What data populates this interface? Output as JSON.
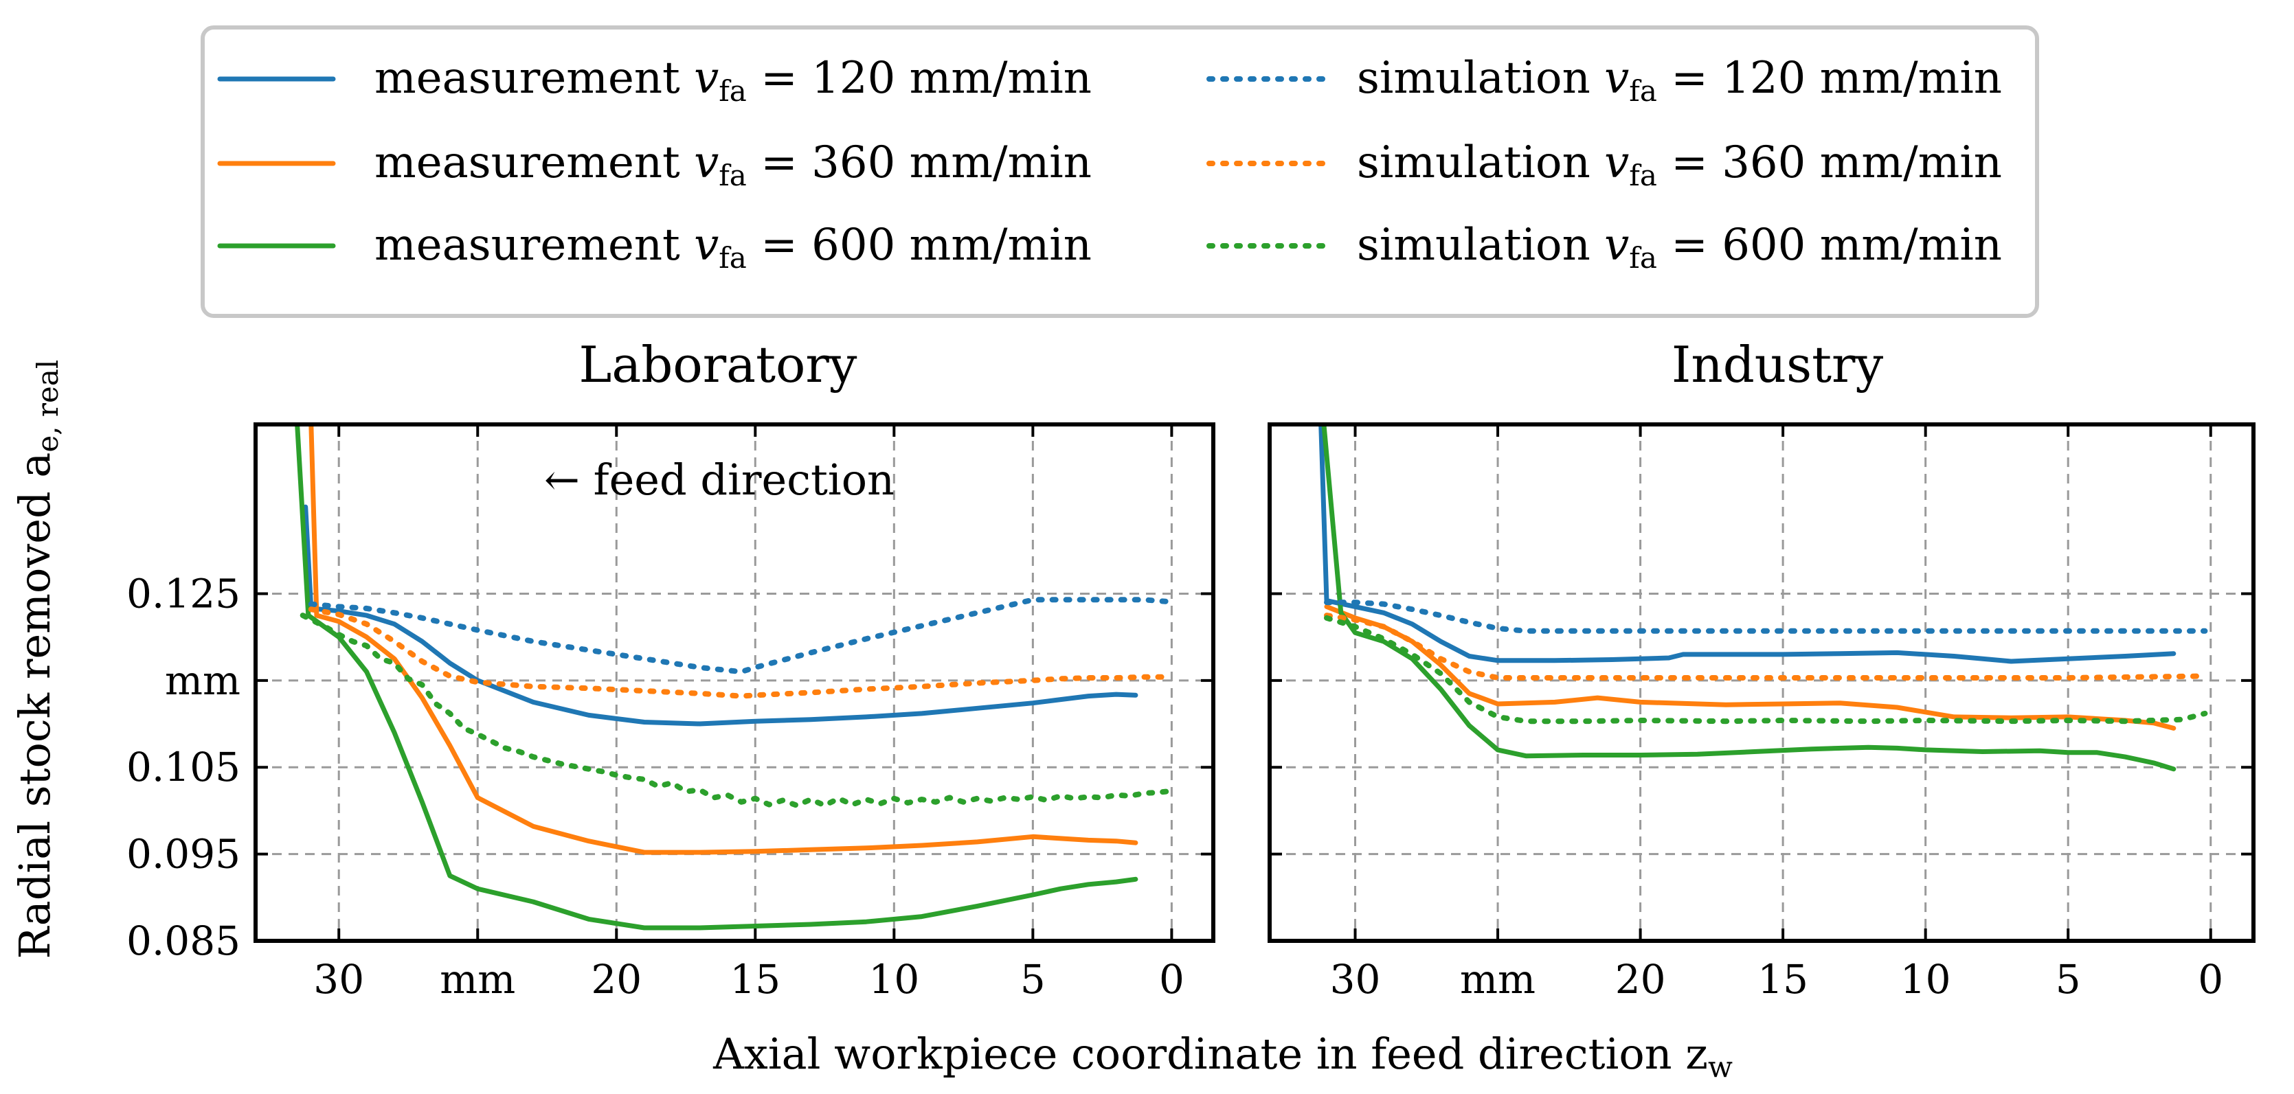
{
  "chart_data": {
    "type": "line",
    "legend": {
      "placement": "top",
      "entries": [
        {
          "kind": "measurement",
          "text": "measurement ",
          "sub": "fa",
          "rate": " = 120 mm/min",
          "color": "#1f77b4",
          "style": "solid"
        },
        {
          "kind": "measurement",
          "text": "measurement ",
          "sub": "fa",
          "rate": " = 360 mm/min",
          "color": "#ff7f0e",
          "style": "solid"
        },
        {
          "kind": "measurement",
          "text": "measurement ",
          "sub": "fa",
          "rate": " = 600 mm/min",
          "color": "#2ca02c",
          "style": "solid"
        },
        {
          "kind": "simulation",
          "text": "simulation ",
          "sub": "fa",
          "rate": " = 120 mm/min",
          "color": "#1f77b4",
          "style": "dotted"
        },
        {
          "kind": "simulation",
          "text": "simulation ",
          "sub": "fa",
          "rate": " = 360 mm/min",
          "color": "#ff7f0e",
          "style": "dotted"
        },
        {
          "kind": "simulation",
          "text": "simulation ",
          "sub": "fa",
          "rate": " = 600 mm/min",
          "color": "#2ca02c",
          "style": "dotted"
        }
      ]
    },
    "ylabel": "Radial stock removed a",
    "ylabel_sub": "e, real",
    "xlabel": "Axial workpiece coordinate in feed direction z",
    "xlabel_sub": "w",
    "xlim": [
      33,
      -1.5
    ],
    "ylim": [
      0.085,
      0.1445
    ],
    "xticks": [
      {
        "value": 30,
        "label": "30"
      },
      {
        "value": 25,
        "label": "mm"
      },
      {
        "value": 20,
        "label": "20"
      },
      {
        "value": 15,
        "label": "15"
      },
      {
        "value": 10,
        "label": "10"
      },
      {
        "value": 5,
        "label": "5"
      },
      {
        "value": 0,
        "label": "0"
      }
    ],
    "yticks": [
      {
        "value": 0.125,
        "label": "0.125"
      },
      {
        "value": 0.115,
        "label": "mm"
      },
      {
        "value": 0.105,
        "label": "0.105"
      },
      {
        "value": 0.095,
        "label": "0.095"
      },
      {
        "value": 0.085,
        "label": "0.085"
      }
    ],
    "grid": true,
    "panels": [
      {
        "title": "Laboratory",
        "annotation": "← feed direction",
        "series": [
          {
            "name": "measurement v_fa = 120 mm/min",
            "color": "#1f77b4",
            "style": "solid",
            "x": [
              31.2,
              31,
              30,
              29,
              28,
              27,
              26,
              25,
              23,
              21,
              19,
              17,
              15,
              13,
              11,
              9,
              7,
              5,
              4,
              3,
              2,
              1.3
            ],
            "y": [
              0.135,
              0.1233,
              0.123,
              0.1225,
              0.1215,
              0.1195,
              0.117,
              0.115,
              0.1125,
              0.111,
              0.1102,
              0.11,
              0.1103,
              0.1105,
              0.1108,
              0.1112,
              0.1118,
              0.1124,
              0.1128,
              0.1132,
              0.1134,
              0.1133
            ]
          },
          {
            "name": "measurement v_fa = 360 mm/min",
            "color": "#ff7f0e",
            "style": "solid",
            "x": [
              31,
              30.8,
              30,
              29,
              28,
              27,
              26,
              25,
              23,
              21,
              19,
              17,
              15,
              13,
              11,
              9,
              7,
              5,
              4,
              3,
              2,
              1.3
            ],
            "y": [
              0.1445,
              0.1225,
              0.1218,
              0.12,
              0.1175,
              0.113,
              0.1075,
              0.1015,
              0.0982,
              0.0965,
              0.0952,
              0.0952,
              0.0953,
              0.0955,
              0.0957,
              0.096,
              0.0964,
              0.097,
              0.0968,
              0.0966,
              0.0965,
              0.0963
            ]
          },
          {
            "name": "measurement v_fa = 600 mm/min",
            "color": "#2ca02c",
            "style": "solid",
            "x": [
              31.5,
              31.1,
              30,
              29,
              28,
              27,
              26,
              25,
              23,
              21,
              19,
              17,
              15,
              13,
              11,
              9,
              7,
              5,
              4,
              3,
              2,
              1.3
            ],
            "y": [
              0.1445,
              0.1225,
              0.12,
              0.116,
              0.109,
              0.101,
              0.0925,
              0.091,
              0.0895,
              0.0875,
              0.0865,
              0.0865,
              0.0867,
              0.0869,
              0.0872,
              0.0878,
              0.089,
              0.0903,
              0.091,
              0.0915,
              0.0918,
              0.0921
            ]
          },
          {
            "name": "simulation v_fa = 120 mm/min",
            "color": "#1f77b4",
            "style": "dotted",
            "x": [
              31,
              30,
              29,
              28,
              27,
              26,
              25,
              23,
              21,
              19,
              17,
              15.5,
              15,
              13,
              11,
              9,
              7,
              5,
              4,
              3,
              2,
              1,
              0.2
            ],
            "y": [
              0.1238,
              0.1235,
              0.1233,
              0.1228,
              0.1222,
              0.1215,
              0.1208,
              0.1195,
              0.1185,
              0.1175,
              0.1165,
              0.116,
              0.1165,
              0.1182,
              0.1198,
              0.1213,
              0.1228,
              0.1243,
              0.1243,
              0.1243,
              0.1243,
              0.1243,
              0.1241
            ]
          },
          {
            "name": "simulation v_fa = 360 mm/min",
            "color": "#ff7f0e",
            "style": "dotted",
            "x": [
              31,
              30,
              29,
              28,
              27,
              26,
              25,
              23,
              21,
              19,
              17,
              15.5,
              15,
              13,
              11,
              9,
              7,
              5,
              4,
              3,
              2,
              1,
              0.2
            ],
            "y": [
              0.1232,
              0.1226,
              0.1215,
              0.1195,
              0.1172,
              0.1155,
              0.1148,
              0.1143,
              0.1141,
              0.1138,
              0.1135,
              0.1132,
              0.1133,
              0.1136,
              0.114,
              0.1143,
              0.1147,
              0.115,
              0.1152,
              0.1153,
              0.1153,
              0.1154,
              0.1154
            ]
          },
          {
            "name": "simulation v_fa = 600 mm/min",
            "color": "#2ca02c",
            "style": "dotted",
            "x": [
              31.3,
              30.5,
              30,
              29.5,
              29,
              28.5,
              28,
              27.5,
              27,
              26.5,
              26,
              25.5,
              25,
              24.5,
              24,
              23.5,
              23,
              22.5,
              22,
              21.5,
              21,
              20.5,
              20,
              19.5,
              19,
              18.5,
              18,
              17.5,
              17,
              16.5,
              16,
              15.5,
              15,
              14.5,
              14,
              13.5,
              13,
              12.5,
              12,
              11.5,
              11,
              10.5,
              10,
              9.5,
              9,
              8.5,
              8,
              7.5,
              7,
              6.5,
              6,
              5.5,
              5,
              4.5,
              4,
              3.5,
              3,
              2.5,
              2,
              1.5,
              1,
              0.5,
              0.2
            ],
            "y": [
              0.1225,
              0.1212,
              0.1203,
              0.1195,
              0.119,
              0.1175,
              0.117,
              0.1152,
              0.1145,
              0.1123,
              0.1112,
              0.1095,
              0.1088,
              0.108,
              0.1072,
              0.1068,
              0.1062,
              0.1058,
              0.1054,
              0.1051,
              0.1048,
              0.1045,
              0.1041,
              0.1038,
              0.1036,
              0.1028,
              0.1032,
              0.1022,
              0.1024,
              0.1015,
              0.1018,
              0.101,
              0.1014,
              0.1007,
              0.1012,
              0.1006,
              0.1013,
              0.1006,
              0.1014,
              0.1007,
              0.1013,
              0.1008,
              0.1014,
              0.1009,
              0.1013,
              0.101,
              0.1015,
              0.101,
              0.1014,
              0.1011,
              0.1015,
              0.1013,
              0.1016,
              0.1012,
              0.1017,
              0.1014,
              0.1016,
              0.1015,
              0.1018,
              0.1017,
              0.102,
              0.1021,
              0.1022
            ]
          }
        ]
      },
      {
        "title": "Industry",
        "series": [
          {
            "name": "measurement v_fa = 120 mm/min",
            "color": "#1f77b4",
            "style": "solid",
            "x": [
              31.2,
              31,
              30,
              29,
              28,
              27,
              26,
              25,
              23,
              21,
              19,
              18.5,
              17,
              15,
              13,
              11,
              9,
              7,
              5,
              3,
              1.3
            ],
            "y": [
              0.1445,
              0.1242,
              0.1235,
              0.1228,
              0.1215,
              0.1195,
              0.1178,
              0.1173,
              0.1173,
              0.1174,
              0.1176,
              0.118,
              0.118,
              0.118,
              0.1181,
              0.1182,
              0.1178,
              0.1172,
              0.1175,
              0.1178,
              0.1181
            ]
          },
          {
            "name": "measurement v_fa = 360 mm/min",
            "color": "#ff7f0e",
            "style": "solid",
            "x": [
              31,
              30,
              29,
              28,
              27,
              26,
              25,
              23,
              21.5,
              20,
              17,
              15,
              13,
              11,
              9,
              7,
              5,
              3,
              2,
              1.3
            ],
            "y": [
              0.1235,
              0.1222,
              0.1212,
              0.1195,
              0.1168,
              0.1135,
              0.1123,
              0.1125,
              0.113,
              0.1125,
              0.1122,
              0.1123,
              0.1124,
              0.1119,
              0.1108,
              0.1107,
              0.1108,
              0.1104,
              0.1101,
              0.1095
            ]
          },
          {
            "name": "measurement v_fa = 600 mm/min",
            "color": "#2ca02c",
            "style": "solid",
            "x": [
              31.1,
              30.5,
              30,
              29,
              28,
              27,
              26,
              25,
              24,
              22,
              20,
              18,
              16,
              14,
              12,
              11,
              10,
              8,
              6,
              5,
              4,
              3,
              2,
              1.3
            ],
            "y": [
              0.1445,
              0.1228,
              0.1205,
              0.1195,
              0.1175,
              0.114,
              0.1098,
              0.107,
              0.1063,
              0.1064,
              0.1064,
              0.1065,
              0.1068,
              0.1071,
              0.1073,
              0.1072,
              0.107,
              0.1068,
              0.1069,
              0.1067,
              0.1067,
              0.1062,
              0.1055,
              0.1048
            ]
          },
          {
            "name": "simulation v_fa = 120 mm/min",
            "color": "#1f77b4",
            "style": "dotted",
            "x": [
              31,
              30,
              29,
              28,
              27,
              26,
              25,
              24,
              23,
              20,
              15,
              10,
              5,
              0.2
            ],
            "y": [
              0.124,
              0.124,
              0.1238,
              0.1232,
              0.1225,
              0.1217,
              0.121,
              0.1207,
              0.1207,
              0.1207,
              0.1207,
              0.1207,
              0.1207,
              0.1207
            ]
          },
          {
            "name": "simulation v_fa = 360 mm/min",
            "color": "#ff7f0e",
            "style": "dotted",
            "x": [
              31,
              30,
              29,
              28,
              27,
              26,
              25,
              24,
              20,
              15,
              10,
              5,
              0.2
            ],
            "y": [
              0.1225,
              0.122,
              0.1212,
              0.1195,
              0.1175,
              0.116,
              0.1153,
              0.1153,
              0.1153,
              0.1153,
              0.1153,
              0.1153,
              0.1155
            ]
          },
          {
            "name": "simulation v_fa = 600 mm/min",
            "color": "#2ca02c",
            "style": "dotted",
            "x": [
              31,
              30,
              29,
              28,
              27,
              26,
              25,
              24,
              22,
              20,
              17,
              15,
              12,
              10,
              7,
              5,
              3,
              1,
              0.2
            ],
            "y": [
              0.1222,
              0.1212,
              0.1198,
              0.118,
              0.1158,
              0.1125,
              0.1108,
              0.1103,
              0.1103,
              0.1104,
              0.1103,
              0.1104,
              0.1103,
              0.1104,
              0.1103,
              0.1104,
              0.1103,
              0.1105,
              0.1112
            ]
          }
        ]
      }
    ]
  }
}
